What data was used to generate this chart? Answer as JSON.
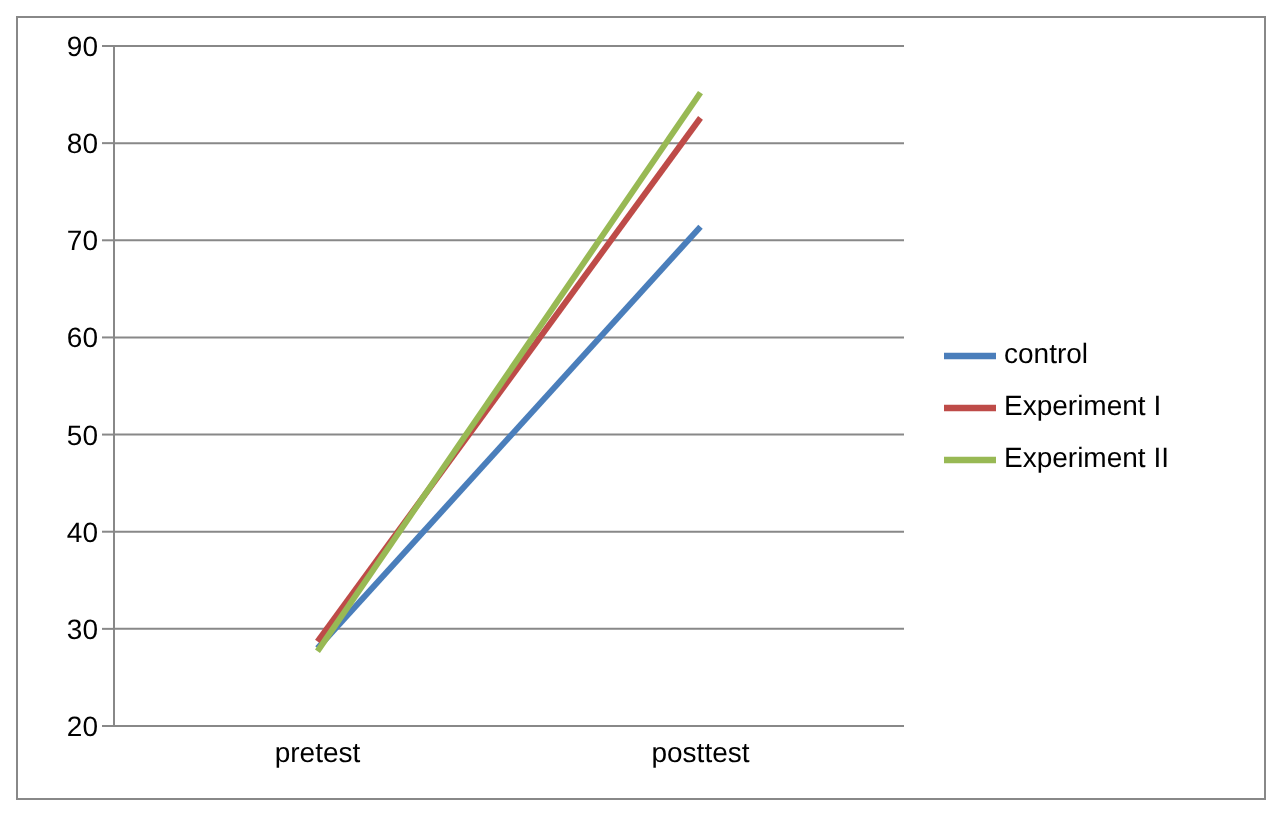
{
  "chart_data": {
    "type": "line",
    "categories": [
      "pretest",
      "posttest"
    ],
    "series": [
      {
        "name": "control",
        "color": "#4a7ebb",
        "values": [
          28,
          71.4
        ]
      },
      {
        "name": "Experiment I",
        "color": "#be4b48",
        "values": [
          28.7,
          82.6
        ]
      },
      {
        "name": "Experiment II",
        "color": "#98b954",
        "values": [
          27.7,
          85.2
        ]
      }
    ],
    "ylim": [
      20,
      90
    ],
    "yticks": [
      20,
      30,
      40,
      50,
      60,
      70,
      80,
      90
    ],
    "grid": "y",
    "legend": "right",
    "marker": "none",
    "line_style": "solid"
  }
}
